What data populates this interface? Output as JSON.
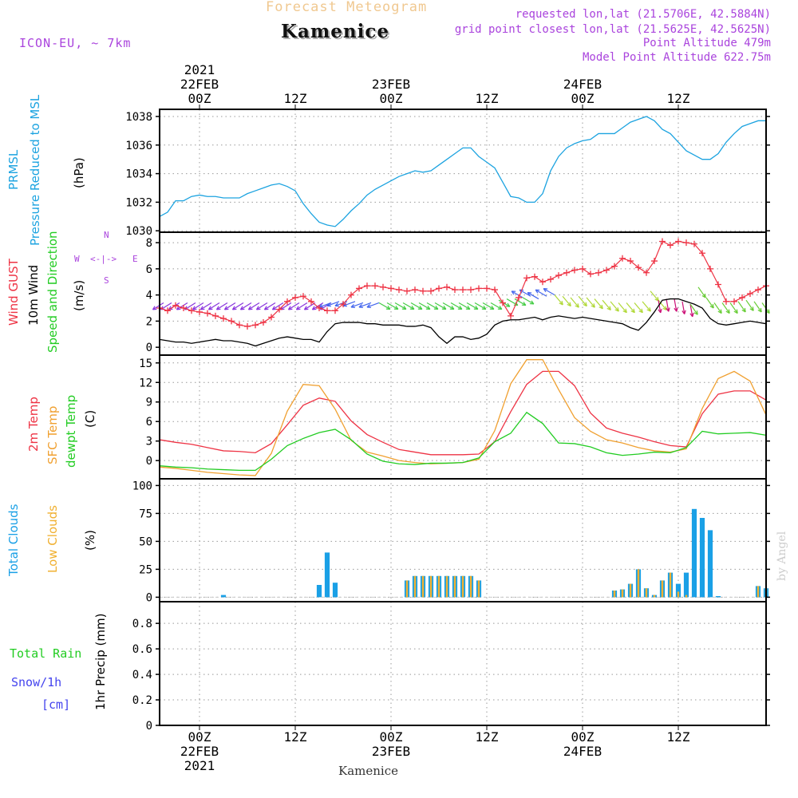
{
  "header": {
    "supertitle": "Forecast Meteogram",
    "location": "Kamenice",
    "model": "ICON-EU, ~ 7km",
    "requested": "requested lon,lat (21.5706E, 42.5884N)",
    "gridpoint": "grid point closest lon,lat (21.5625E, 42.5625N)",
    "point_alt": "Point Altitude 479m",
    "model_alt": "Model Point Altitude 622.75m",
    "footer": "Kamenice",
    "credit": "by Angel"
  },
  "time_axis": {
    "top_labels": [
      {
        "t": 0,
        "lines": [
          "2021",
          "22FEB",
          "00Z"
        ]
      },
      {
        "t": 12,
        "lines": [
          "12Z"
        ]
      },
      {
        "t": 24,
        "lines": [
          "23FEB",
          "00Z"
        ]
      },
      {
        "t": 36,
        "lines": [
          "12Z"
        ]
      },
      {
        "t": 48,
        "lines": [
          "24FEB",
          "00Z"
        ]
      },
      {
        "t": 60,
        "lines": [
          "12Z"
        ]
      }
    ],
    "bottom_labels": [
      {
        "t": 0,
        "lines": [
          "00Z",
          "22FEB",
          "2021"
        ]
      },
      {
        "t": 12,
        "lines": [
          "12Z"
        ]
      },
      {
        "t": 24,
        "lines": [
          "00Z",
          "23FEB"
        ]
      },
      {
        "t": 36,
        "lines": [
          "12Z"
        ]
      },
      {
        "t": 48,
        "lines": [
          "00Z",
          "24FEB"
        ]
      },
      {
        "t": 60,
        "lines": [
          "12Z"
        ]
      }
    ],
    "range_hours": [
      -5,
      71
    ]
  },
  "panel_labels": {
    "pressure": [
      "PRMSL",
      "Pressure Reduced to MSL",
      "(hPa)"
    ],
    "wind": [
      "Wind GUST",
      "10m Wind",
      "Speed and Direction",
      "(m/s)"
    ],
    "compass": {
      "n": "N",
      "s": "S",
      "w": "W",
      "e": "E",
      "arrow": "<-|->"
    },
    "temp": [
      "2m Temp",
      "SFC Temp",
      "dewpt Temp",
      "(C)"
    ],
    "clouds": [
      "Total Clouds",
      "Low Clouds",
      "(%)"
    ],
    "precip": [
      "Total  Rain",
      "Snow/1h",
      "[cm]",
      "1hr Precip (mm)"
    ]
  },
  "colors": {
    "pressure": "#1ca3e0",
    "gust": "#ee3344",
    "wind": "#000000",
    "t2m": "#ee3344",
    "sfc": "#f0a030",
    "dew": "#22cc22",
    "total_clouds": "#1aa0e6",
    "low_clouds": "#f0b030",
    "rain": "#22cc22",
    "snow": "#4444ee",
    "header_gray": "#f0c890",
    "purple": "#aa44dd"
  },
  "chart_data": [
    {
      "type": "line",
      "title": "PRMSL",
      "ylabel": "(hPa)",
      "ylim": [
        1029.9,
        1038.5
      ],
      "yticks": [
        1030,
        1032,
        1034,
        1036,
        1038
      ],
      "series": [
        {
          "name": "PRMSL",
          "x": [
            -5,
            -4,
            -3,
            -2,
            -1,
            0,
            1,
            2,
            3,
            4,
            5,
            6,
            7,
            8,
            9,
            10,
            11,
            12,
            13,
            14,
            15,
            16,
            17,
            18,
            19,
            20,
            21,
            22,
            23,
            24,
            25,
            26,
            27,
            28,
            29,
            30,
            31,
            32,
            33,
            34,
            35,
            36,
            37,
            38,
            39,
            40,
            41,
            42,
            43,
            44,
            45,
            46,
            47,
            48,
            49,
            50,
            51,
            52,
            53,
            54,
            55,
            56,
            57,
            58,
            59,
            60,
            61,
            62,
            63,
            64,
            65,
            66,
            67,
            68,
            69,
            70,
            71
          ],
          "values": [
            1031.0,
            1031.3,
            1032.1,
            1032.1,
            1032.4,
            1032.5,
            1032.4,
            1032.4,
            1032.3,
            1032.3,
            1032.3,
            1032.6,
            1032.8,
            1033.0,
            1033.2,
            1033.3,
            1033.1,
            1032.8,
            1031.9,
            1031.2,
            1030.6,
            1030.4,
            1030.3,
            1030.8,
            1031.4,
            1031.9,
            1032.5,
            1032.9,
            1033.2,
            1033.5,
            1033.8,
            1034.0,
            1034.2,
            1034.1,
            1034.2,
            1034.6,
            1035.0,
            1035.4,
            1035.8,
            1035.8,
            1035.2,
            1034.8,
            1034.4,
            1033.4,
            1032.4,
            1032.3,
            1032.0,
            1032.0,
            1032.6,
            1034.2,
            1035.2,
            1035.8,
            1036.1,
            1036.3,
            1036.4,
            1036.8,
            1036.8,
            1036.8,
            1037.2,
            1037.6,
            1037.8,
            1038.0,
            1037.7,
            1037.1,
            1036.8,
            1036.2,
            1035.6,
            1035.3,
            1035.0,
            1035.0,
            1035.4,
            1036.2,
            1036.8,
            1037.3,
            1037.5,
            1037.7,
            1037.7
          ]
        }
      ]
    },
    {
      "type": "line",
      "title": "Wind",
      "ylabel": "(m/s)",
      "ylim": [
        -0.6,
        8.8
      ],
      "yticks": [
        0,
        2,
        4,
        6,
        8
      ],
      "series": [
        {
          "name": "Wind GUST",
          "x": [
            -5,
            -4,
            -3,
            -2,
            -1,
            0,
            1,
            2,
            3,
            4,
            5,
            6,
            7,
            8,
            9,
            10,
            11,
            12,
            13,
            14,
            15,
            16,
            17,
            18,
            19,
            20,
            21,
            22,
            23,
            24,
            25,
            26,
            27,
            28,
            29,
            30,
            31,
            32,
            33,
            34,
            35,
            36,
            37,
            38,
            39,
            40,
            41,
            42,
            43,
            44,
            45,
            46,
            47,
            48,
            49,
            50,
            51,
            52,
            53,
            54,
            55,
            56,
            57,
            58,
            59,
            60,
            61,
            62,
            63,
            64,
            65,
            66,
            67,
            68,
            69,
            70,
            71
          ],
          "values": [
            3.0,
            2.8,
            3.2,
            3.0,
            2.8,
            2.7,
            2.6,
            2.4,
            2.2,
            2.0,
            1.7,
            1.6,
            1.7,
            1.9,
            2.3,
            2.9,
            3.5,
            3.8,
            3.9,
            3.5,
            3.0,
            2.8,
            2.8,
            3.3,
            4.0,
            4.5,
            4.7,
            4.7,
            4.6,
            4.5,
            4.4,
            4.3,
            4.4,
            4.3,
            4.3,
            4.5,
            4.6,
            4.4,
            4.4,
            4.4,
            4.5,
            4.5,
            4.4,
            3.4,
            2.4,
            3.8,
            5.3,
            5.4,
            5.0,
            5.2,
            5.5,
            5.7,
            5.9,
            6.0,
            5.6,
            5.7,
            5.9,
            6.2,
            6.8,
            6.6,
            6.1,
            5.7,
            6.6,
            8.1,
            7.8,
            8.1,
            8.0,
            7.9,
            7.2,
            6.0,
            4.8,
            3.5,
            3.5,
            3.8,
            4.1,
            4.4,
            4.7
          ]
        },
        {
          "name": "10m Wind",
          "x": [
            -5,
            -4,
            -3,
            -2,
            -1,
            0,
            1,
            2,
            3,
            4,
            5,
            6,
            7,
            8,
            9,
            10,
            11,
            12,
            13,
            14,
            15,
            16,
            17,
            18,
            19,
            20,
            21,
            22,
            23,
            24,
            25,
            26,
            27,
            28,
            29,
            30,
            31,
            32,
            33,
            34,
            35,
            36,
            37,
            38,
            39,
            40,
            41,
            42,
            43,
            44,
            45,
            46,
            47,
            48,
            49,
            50,
            51,
            52,
            53,
            54,
            55,
            56,
            57,
            58,
            59,
            60,
            61,
            62,
            63,
            64,
            65,
            66,
            67,
            68,
            69,
            70,
            71
          ],
          "values": [
            0.6,
            0.5,
            0.4,
            0.4,
            0.3,
            0.4,
            0.5,
            0.6,
            0.5,
            0.5,
            0.4,
            0.3,
            0.1,
            0.3,
            0.5,
            0.7,
            0.8,
            0.7,
            0.6,
            0.6,
            0.4,
            1.2,
            1.8,
            1.9,
            1.9,
            1.9,
            1.8,
            1.8,
            1.7,
            1.7,
            1.7,
            1.6,
            1.6,
            1.7,
            1.5,
            0.8,
            0.3,
            0.8,
            0.8,
            0.6,
            0.7,
            1.0,
            1.7,
            2.0,
            2.1,
            2.1,
            2.2,
            2.3,
            2.1,
            2.3,
            2.4,
            2.3,
            2.2,
            2.3,
            2.2,
            2.1,
            2.0,
            1.9,
            1.8,
            1.5,
            1.3,
            1.9,
            2.7,
            3.6,
            3.7,
            3.7,
            3.5,
            3.3,
            3.0,
            2.2,
            1.8,
            1.7,
            1.8,
            1.9,
            2.0,
            1.9,
            1.8
          ]
        }
      ]
    },
    {
      "type": "line",
      "title": "Temperature",
      "ylabel": "(C)",
      "ylim": [
        -2.8,
        16.2
      ],
      "yticks": [
        0,
        3,
        6,
        9,
        12,
        15
      ],
      "series": [
        {
          "name": "2m Temp",
          "x": [
            -5,
            -3,
            -1,
            1,
            3,
            5,
            7,
            9,
            11,
            13,
            15,
            17,
            19,
            21,
            23,
            25,
            27,
            29,
            31,
            33,
            35,
            37,
            39,
            41,
            43,
            45,
            47,
            49,
            51,
            53,
            55,
            57,
            59,
            61,
            63,
            65,
            67,
            69,
            71
          ],
          "values": [
            3.2,
            2.8,
            2.5,
            2.0,
            1.5,
            1.4,
            1.2,
            2.6,
            5.5,
            8.5,
            9.6,
            9.1,
            6.1,
            4.0,
            2.8,
            1.7,
            1.3,
            0.9,
            0.9,
            0.9,
            1.0,
            2.9,
            7.5,
            11.7,
            13.7,
            13.7,
            11.5,
            7.3,
            5.0,
            4.2,
            3.6,
            2.9,
            2.3,
            2.1,
            7.2,
            10.2,
            10.7,
            10.7,
            9.3
          ]
        },
        {
          "name": "SFC Temp",
          "x": [
            -5,
            -3,
            -1,
            1,
            3,
            5,
            7,
            9,
            11,
            13,
            15,
            17,
            19,
            21,
            23,
            25,
            27,
            29,
            31,
            33,
            35,
            37,
            39,
            41,
            43,
            45,
            47,
            49,
            51,
            53,
            55,
            57,
            59,
            61,
            63,
            65,
            67,
            69,
            71
          ],
          "values": [
            -1.0,
            -1.2,
            -1.5,
            -1.8,
            -2.0,
            -2.2,
            -2.3,
            1.1,
            7.6,
            11.7,
            11.5,
            7.9,
            3.1,
            1.3,
            0.7,
            0.0,
            -0.3,
            -0.5,
            -0.4,
            -0.3,
            0.2,
            4.6,
            11.8,
            15.5,
            15.5,
            10.9,
            6.6,
            4.5,
            3.2,
            2.7,
            2.0,
            1.5,
            1.3,
            1.8,
            8.0,
            12.6,
            13.7,
            12.2,
            7.0
          ]
        },
        {
          "name": "dewpt Temp",
          "x": [
            -5,
            -3,
            -1,
            1,
            3,
            5,
            7,
            9,
            11,
            13,
            15,
            17,
            19,
            21,
            23,
            25,
            27,
            29,
            31,
            33,
            35,
            37,
            39,
            41,
            43,
            45,
            47,
            49,
            51,
            53,
            55,
            57,
            59,
            61,
            63,
            65,
            67,
            69,
            71
          ],
          "values": [
            -0.8,
            -1.0,
            -1.1,
            -1.3,
            -1.4,
            -1.5,
            -1.5,
            0.2,
            2.3,
            3.4,
            4.3,
            4.8,
            3.2,
            1.0,
            -0.1,
            -0.5,
            -0.6,
            -0.4,
            -0.4,
            -0.3,
            0.4,
            2.9,
            4.2,
            7.4,
            5.7,
            2.7,
            2.6,
            2.1,
            1.2,
            0.8,
            1.0,
            1.3,
            1.2,
            2.0,
            4.5,
            4.1,
            4.2,
            4.3,
            3.9
          ]
        }
      ]
    },
    {
      "type": "bar",
      "title": "Clouds",
      "ylabel": "(%)",
      "ylim": [
        -4,
        106
      ],
      "yticks": [
        0,
        25,
        50,
        75,
        100
      ],
      "series": [
        {
          "name": "Total Clouds",
          "x": [
            3,
            15,
            16,
            17,
            26,
            27,
            28,
            29,
            30,
            31,
            32,
            33,
            34,
            35,
            52,
            53,
            54,
            55,
            56,
            57,
            58,
            59,
            60,
            61,
            62,
            63,
            64,
            65,
            70,
            71
          ],
          "values": [
            2,
            11,
            40,
            13,
            15,
            19,
            19,
            19,
            19,
            19,
            19,
            19,
            19,
            15,
            6,
            7,
            12,
            25,
            8,
            2,
            15,
            22,
            12,
            22,
            79,
            71,
            60,
            1,
            10,
            8
          ]
        },
        {
          "name": "Low Clouds",
          "x": [
            26,
            27,
            28,
            29,
            30,
            31,
            32,
            33,
            34,
            35,
            52,
            53,
            54,
            55,
            56,
            57,
            58,
            59,
            60,
            61,
            70,
            71
          ],
          "values": [
            15,
            19,
            19,
            19,
            19,
            19,
            19,
            19,
            19,
            15,
            6,
            7,
            12,
            25,
            8,
            2,
            15,
            22,
            5,
            2,
            10,
            8
          ]
        }
      ]
    },
    {
      "type": "line",
      "title": "Precipitation",
      "ylabel": "1hr Precip (mm)",
      "ylim": [
        0,
        0.97
      ],
      "yticks": [
        0,
        0.2,
        0.4,
        0.6,
        0.8
      ],
      "series": [
        {
          "name": "Total Rain",
          "x": [
            -5,
            71
          ],
          "values": [
            0,
            0
          ]
        },
        {
          "name": "Snow/1h",
          "x": [
            -5,
            71
          ],
          "values": [
            0,
            0
          ]
        }
      ]
    }
  ],
  "wind_barbs": [
    {
      "from": -4.5,
      "to": 16.5,
      "dir": 58,
      "color": "#8833dd"
    },
    {
      "from": 16.5,
      "to": 22.5,
      "dir": 70,
      "color": "#4466ee"
    },
    {
      "from": 22.5,
      "to": 40.5,
      "dir": 300,
      "color": "#44cc44"
    },
    {
      "from": 40.5,
      "to": 44.5,
      "dir": 120,
      "color": "#4466ee"
    },
    {
      "from": 44.5,
      "to": 57.5,
      "dir": 320,
      "color": "#b0d836"
    },
    {
      "from": 57.5,
      "to": 61.5,
      "dir": 350,
      "color": "#cc1177"
    },
    {
      "from": 61.5,
      "to": 71,
      "dir": 325,
      "color": "#66cc33"
    }
  ]
}
